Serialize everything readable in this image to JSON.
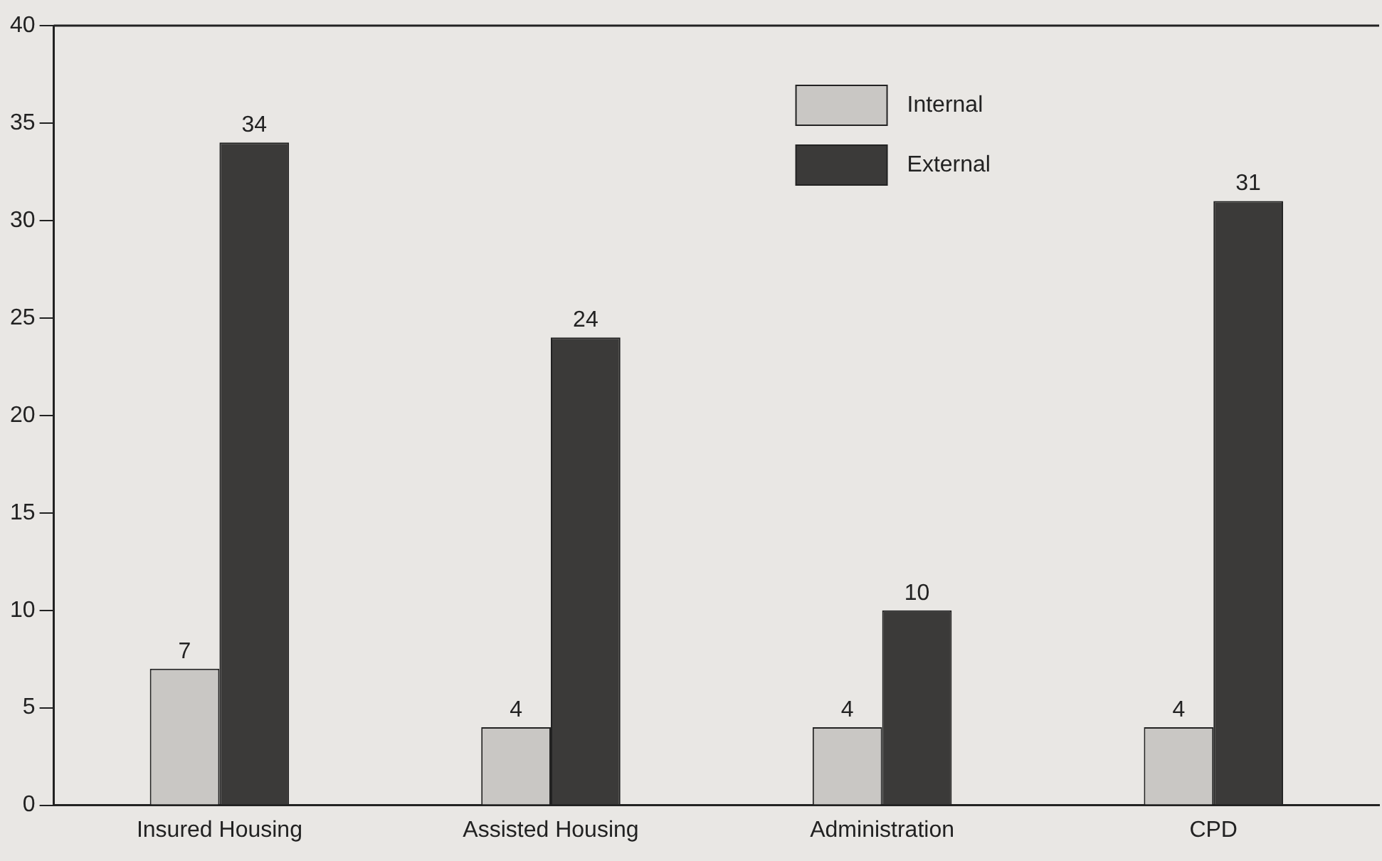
{
  "chart_data": {
    "type": "bar",
    "categories": [
      "Insured Housing",
      "Assisted Housing",
      "Administration",
      "CPD"
    ],
    "series": [
      {
        "name": "Internal",
        "color": "#c9c7c4",
        "values": [
          7,
          4,
          4,
          4
        ]
      },
      {
        "name": "External",
        "color": "#3b3a39",
        "values": [
          34,
          24,
          10,
          31
        ]
      }
    ],
    "ylim": [
      0,
      40
    ],
    "yticks": [
      0,
      5,
      10,
      15,
      20,
      25,
      30,
      35,
      40
    ],
    "grid": false,
    "legend": "top right",
    "data_labels": true
  }
}
